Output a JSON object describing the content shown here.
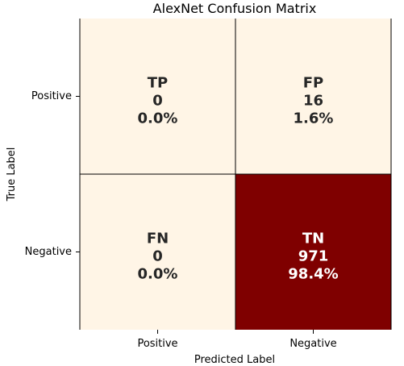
{
  "chart_data": {
    "type": "heatmap",
    "title": "AlexNet Confusion Matrix",
    "xlabel": "Predicted Label",
    "ylabel": "True Label",
    "x_categories": [
      "Positive",
      "Negative"
    ],
    "y_categories": [
      "Positive",
      "Negative"
    ],
    "cells": [
      [
        {
          "label": "TP",
          "count": 0,
          "percent": "0.0%",
          "color": "#fff5e6",
          "text_color": "#262626"
        },
        {
          "label": "FP",
          "count": 16,
          "percent": "1.6%",
          "color": "#fff5e6",
          "text_color": "#262626"
        }
      ],
      [
        {
          "label": "FN",
          "count": 0,
          "percent": "0.0%",
          "color": "#fff5e6",
          "text_color": "#262626"
        },
        {
          "label": "TN",
          "count": 971,
          "percent": "98.4%",
          "color": "#7f0000",
          "text_color": "#ffffff"
        }
      ]
    ],
    "colormap": "OrRd",
    "grid": true,
    "colorbar": false
  }
}
